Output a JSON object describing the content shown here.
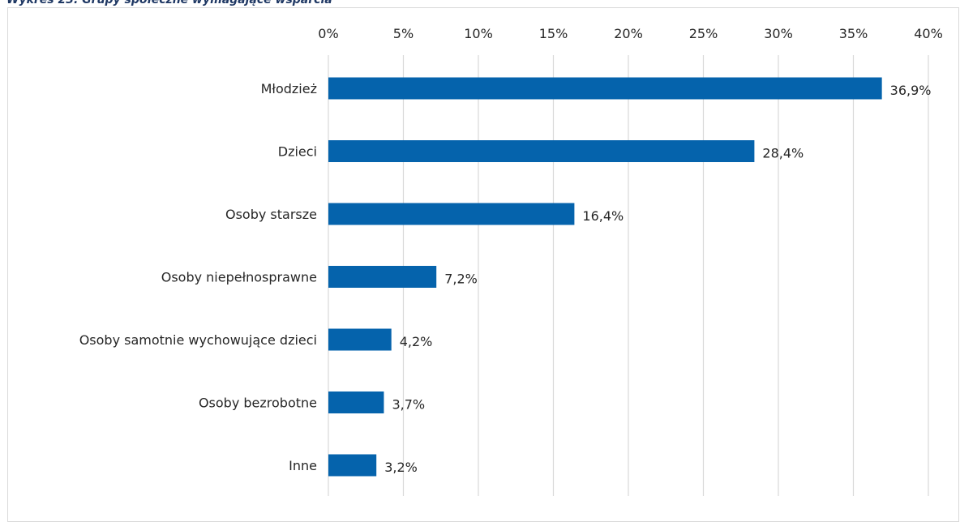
{
  "caption": "Wykres 23. Grupy społeczne wymagające wsparcia",
  "chart_data": {
    "type": "bar",
    "orientation": "horizontal",
    "title": "",
    "xlabel": "",
    "ylabel": "",
    "xlim": [
      0,
      40
    ],
    "x_ticks": [
      0,
      5,
      10,
      15,
      20,
      25,
      30,
      35,
      40
    ],
    "x_tick_labels": [
      "0%",
      "5%",
      "10%",
      "15%",
      "20%",
      "25%",
      "30%",
      "35%",
      "40%"
    ],
    "axis_position": "top",
    "grid": true,
    "bar_color": "#0563ac",
    "grid_color": "#d9d9d9",
    "categories": [
      "Młodzież",
      "Dzieci",
      "Osoby starsze",
      "Osoby niepełnosprawne",
      "Osoby samotnie wychowujące dzieci",
      "Osoby bezrobotne",
      "Inne"
    ],
    "values": [
      36.9,
      28.4,
      16.4,
      7.2,
      4.2,
      3.7,
      3.2
    ],
    "value_labels": [
      "36,9%",
      "28,4%",
      "16,4%",
      "7,2%",
      "4,2%",
      "3,7%",
      "3,2%"
    ]
  }
}
